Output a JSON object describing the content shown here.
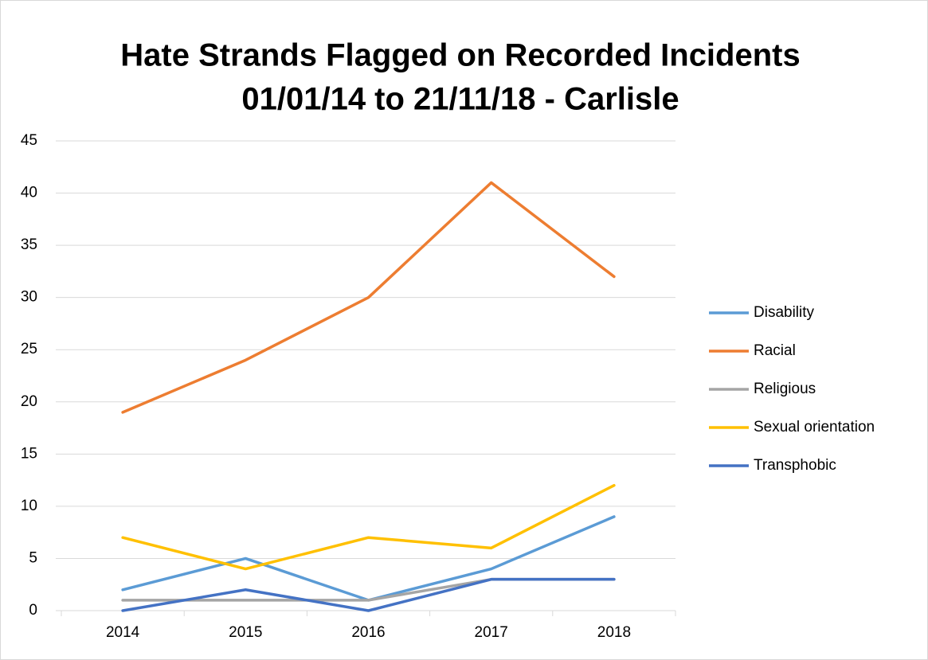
{
  "chart_data": {
    "type": "line",
    "title": [
      "Hate Strands Flagged on Recorded Incidents",
      "01/01/14 to 21/11/18 - Carlisle"
    ],
    "categories": [
      "2014",
      "2015",
      "2016",
      "2017",
      "2018"
    ],
    "series": [
      {
        "name": "Disability",
        "color": "#5b9bd5",
        "values": [
          2,
          5,
          1,
          4,
          9
        ]
      },
      {
        "name": "Racial",
        "color": "#ed7d31",
        "values": [
          19,
          24,
          30,
          41,
          32
        ]
      },
      {
        "name": "Religious",
        "color": "#a5a5a5",
        "values": [
          1,
          1,
          1,
          3,
          3
        ]
      },
      {
        "name": "Sexual orientation",
        "color": "#ffc000",
        "values": [
          7,
          4,
          7,
          6,
          12
        ]
      },
      {
        "name": "Transphobic",
        "color": "#4472c4",
        "values": [
          0,
          2,
          0,
          3,
          3
        ]
      }
    ],
    "ylim": [
      0,
      45
    ],
    "yticks": [
      0,
      5,
      10,
      15,
      20,
      25,
      30,
      35,
      40,
      45
    ],
    "grid": true,
    "legend": "right"
  }
}
